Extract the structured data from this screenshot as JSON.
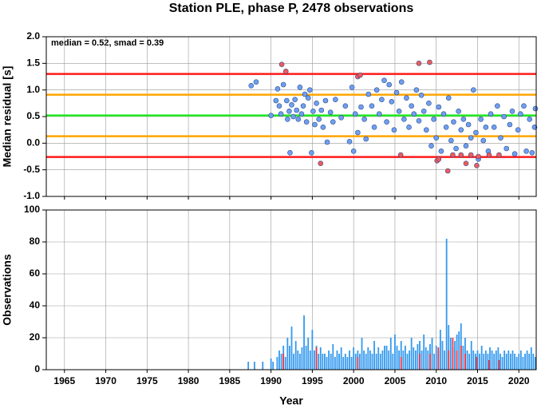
{
  "chart_data": [
    {
      "type": "scatter",
      "title": "Station PLE, phase P, 2478 observations",
      "ylabel": "Median residual [s]",
      "annotation": "median = 0.52, smad = 0.39",
      "xlim": [
        1962.8,
        2022.1
      ],
      "ylim": [
        -1.0,
        2.0
      ],
      "yticks": [
        {
          "value": -1.0,
          "label": "-1.0"
        },
        {
          "value": -0.5,
          "label": "-0.5"
        },
        {
          "value": 0.0,
          "label": "0.0"
        },
        {
          "value": 0.5,
          "label": "0.5"
        },
        {
          "value": 1.0,
          "label": "1.0"
        },
        {
          "value": 1.5,
          "label": "1.5"
        },
        {
          "value": 2.0,
          "label": "2.0"
        }
      ],
      "grid": true,
      "reference_lines": [
        {
          "value": 1.3,
          "color": "#ff1a1a"
        },
        {
          "value": -0.26,
          "color": "#ff1a1a"
        },
        {
          "value": 0.91,
          "color": "#ffa500"
        },
        {
          "value": 0.13,
          "color": "#ffa500"
        },
        {
          "value": 0.52,
          "color": "#1ee61e"
        }
      ],
      "series": [
        {
          "color": "#6f9ff0",
          "x": [
            1987.6,
            1988.2,
            1990,
            1990.6,
            1990.8,
            1991,
            1991.2,
            1991.5,
            1991.9,
            1992,
            1992.2,
            1992.3,
            1992.5,
            1992.7,
            1992.9,
            1993.1,
            1993.3,
            1993.5,
            1993.7,
            1993.9,
            1994.1,
            1994.3,
            1994.5,
            1994.7,
            1994.9,
            1995.1,
            1995.3,
            1995.5,
            1995.8,
            1996.1,
            1996.3,
            1996.6,
            1996.8,
            1997.2,
            1997.5,
            1997.8,
            1998.5,
            1999,
            1999.5,
            1999.8,
            2000,
            2000.2,
            2000.5,
            2000.9,
            2001.3,
            2001.5,
            2001.8,
            2002.2,
            2002.5,
            2002.8,
            2003.1,
            2003.4,
            2003.7,
            2004,
            2004.3,
            2004.6,
            2004.9,
            2005.2,
            2005.5,
            2005.8,
            2006.1,
            2006.4,
            2006.7,
            2007,
            2007.3,
            2007.6,
            2007.9,
            2008.2,
            2008.5,
            2008.8,
            2009.1,
            2009.4,
            2009.7,
            2010,
            2010.3,
            2010.6,
            2010.9,
            2011.2,
            2011.5,
            2011.8,
            2012.1,
            2012.4,
            2012.7,
            2013,
            2013.3,
            2013.6,
            2013.9,
            2014.2,
            2014.5,
            2014.8,
            2015.1,
            2015.4,
            2015.7,
            2016,
            2016.3,
            2016.6,
            2017,
            2017.4,
            2017.8,
            2018.2,
            2018.5,
            2018.9,
            2019.2,
            2019.5,
            2019.9,
            2020.2,
            2020.6,
            2020.9,
            2021.3,
            2021.6,
            2021.9,
            2022
          ],
          "values": [
            1.08,
            1.15,
            0.52,
            0.8,
            1.02,
            0.7,
            0.55,
            1.1,
            0.8,
            0.45,
            0.6,
            -0.18,
            0.72,
            0.5,
            0.82,
            0.62,
            0.45,
            1.05,
            0.55,
            0.7,
            0.92,
            0.4,
            0.85,
            1.0,
            -0.18,
            0.6,
            0.35,
            0.75,
            0.45,
            0.62,
            0.3,
            0.8,
            0.02,
            0.58,
            0.4,
            0.82,
            0.48,
            0.7,
            0.03,
            1.05,
            -0.15,
            0.55,
            0.2,
            0.68,
            0.45,
            0.08,
            0.92,
            0.7,
            0.3,
            1.0,
            0.55,
            0.82,
            1.18,
            0.4,
            1.1,
            0.78,
            0.25,
            0.95,
            0.6,
            1.15,
            0.45,
            0.85,
            0.3,
            0.7,
            0.55,
            1.0,
            0.42,
            0.9,
            0.6,
            0.25,
            0.75,
            -0.05,
            0.45,
            0.1,
            0.68,
            -0.15,
            0.55,
            0.3,
            0.85,
            0.05,
            0.4,
            -0.1,
            0.6,
            0.25,
            0.45,
            -0.05,
            0.35,
            0.1,
            1.0,
            0.2,
            -0.3,
            0.45,
            0.05,
            0.3,
            -0.15,
            0.55,
            0.3,
            0.7,
            0.1,
            0.5,
            -0.1,
            0.35,
            0.6,
            -0.2,
            0.25,
            0.55,
            0.7,
            -0.15,
            0.45,
            -0.18,
            0.3,
            0.65
          ]
        },
        {
          "color": "#f25a5a",
          "x": [
            1991.3,
            1991.8,
            1996,
            2000.5,
            2000.8,
            2005.7,
            2007.9,
            2009.2,
            2010.1,
            2010.3,
            2011.4,
            2012,
            2013,
            2013.6,
            2014.2,
            2014.9,
            2015.1,
            2016.4,
            2017.6
          ],
          "values": [
            1.48,
            1.35,
            -0.38,
            1.25,
            1.28,
            -0.22,
            1.5,
            1.52,
            -0.33,
            -0.3,
            -0.52,
            -0.22,
            -0.22,
            -0.38,
            -0.22,
            -0.42,
            -0.25,
            -0.22,
            -0.22
          ]
        }
      ]
    },
    {
      "type": "bar",
      "ylabel": "Observations",
      "xlabel": "Year",
      "xlim": [
        1962.8,
        2022.1
      ],
      "ylim": [
        0,
        100
      ],
      "xticks": [
        1965,
        1970,
        1975,
        1980,
        1985,
        1990,
        1995,
        2000,
        2005,
        2010,
        2015,
        2020
      ],
      "yticks": [
        0,
        20,
        40,
        60,
        80,
        100
      ],
      "grid": true,
      "series": [
        {
          "color": "#3399ee",
          "x": [
            1987,
            1987.25,
            1987.5,
            1987.75,
            1988,
            1988.25,
            1988.5,
            1988.75,
            1989,
            1989.25,
            1989.5,
            1989.75,
            1990,
            1990.25,
            1990.5,
            1990.75,
            1991,
            1991.25,
            1991.5,
            1991.75,
            1992,
            1992.25,
            1992.5,
            1992.75,
            1993,
            1993.25,
            1993.5,
            1993.75,
            1994,
            1994.25,
            1994.5,
            1994.75,
            1995,
            1995.25,
            1995.5,
            1995.75,
            1996,
            1996.25,
            1996.5,
            1996.75,
            1997,
            1997.25,
            1997.5,
            1997.75,
            1998,
            1998.25,
            1998.5,
            1998.75,
            1999,
            1999.25,
            1999.5,
            1999.75,
            2000,
            2000.25,
            2000.5,
            2000.75,
            2001,
            2001.25,
            2001.5,
            2001.75,
            2002,
            2002.25,
            2002.5,
            2002.75,
            2003,
            2003.25,
            2003.5,
            2003.75,
            2004,
            2004.25,
            2004.5,
            2004.75,
            2005,
            2005.25,
            2005.5,
            2005.75,
            2006,
            2006.25,
            2006.5,
            2006.75,
            2007,
            2007.25,
            2007.5,
            2007.75,
            2008,
            2008.25,
            2008.5,
            2008.75,
            2009,
            2009.25,
            2009.5,
            2009.75,
            2010,
            2010.25,
            2010.5,
            2010.75,
            2011,
            2011.25,
            2011.5,
            2011.75,
            2012,
            2012.25,
            2012.5,
            2012.75,
            2013,
            2013.25,
            2013.5,
            2013.75,
            2014,
            2014.25,
            2014.5,
            2014.75,
            2015,
            2015.25,
            2015.5,
            2015.75,
            2016,
            2016.25,
            2016.5,
            2016.75,
            2017,
            2017.25,
            2017.5,
            2017.75,
            2018,
            2018.25,
            2018.5,
            2018.75,
            2019,
            2019.25,
            2019.5,
            2019.75,
            2020,
            2020.25,
            2020.5,
            2020.75,
            2021,
            2021.25,
            2021.5,
            2021.75,
            2022
          ],
          "values": [
            0,
            5,
            0,
            0,
            5,
            0,
            0,
            0,
            5,
            0,
            0,
            0,
            7,
            5,
            0,
            8,
            12,
            10,
            15,
            8,
            20,
            15,
            27,
            10,
            18,
            12,
            10,
            14,
            34,
            15,
            20,
            12,
            25,
            12,
            15,
            10,
            14,
            10,
            10,
            8,
            12,
            10,
            16,
            8,
            12,
            10,
            14,
            8,
            10,
            8,
            12,
            8,
            14,
            10,
            12,
            10,
            20,
            12,
            10,
            14,
            12,
            10,
            18,
            10,
            14,
            10,
            12,
            15,
            15,
            12,
            20,
            10,
            22,
            15,
            12,
            18,
            12,
            15,
            10,
            12,
            20,
            14,
            12,
            16,
            18,
            12,
            22,
            14,
            12,
            16,
            20,
            10,
            15,
            12,
            25,
            18,
            12,
            82,
            28,
            20,
            14,
            18,
            22,
            24,
            29,
            15,
            20,
            12,
            10,
            18,
            12,
            10,
            12,
            10,
            15,
            10,
            12,
            10,
            14,
            12,
            10,
            12,
            14,
            10,
            8,
            12,
            10,
            12,
            10,
            12,
            10,
            8,
            10,
            12,
            8,
            10,
            12,
            10,
            14,
            10,
            8
          ]
        },
        {
          "color": "#e8384a",
          "x": [
            1991.5,
            1995.5,
            2000.5,
            2005.75,
            2008,
            2009.25,
            2010.25,
            2011.5,
            2012,
            2012.5,
            2013,
            2013.5,
            2014.9,
            2016.4,
            2017.6
          ],
          "values": [
            10,
            14,
            8,
            8,
            10,
            10,
            14,
            12,
            20,
            12,
            15,
            10,
            8,
            6,
            6
          ]
        }
      ]
    }
  ]
}
